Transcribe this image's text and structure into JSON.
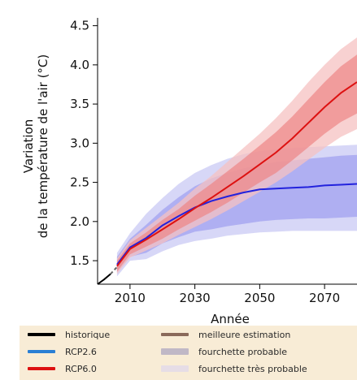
{
  "chart_data": {
    "type": "line",
    "xlabel": "Année",
    "ylabel": "Variation de la température de l'air (°C)",
    "xlim": [
      2000,
      2080
    ],
    "ylim": [
      1.2,
      4.6
    ],
    "x_ticks": [
      2010,
      2030,
      2050,
      2070
    ],
    "y_ticks": [
      1.5,
      2.0,
      2.5,
      3.0,
      3.5,
      4.0,
      4.5
    ],
    "grid": false,
    "series": [
      {
        "name": "historique",
        "color": "#000000",
        "style": "solid",
        "x": [
          2000,
          2002,
          2004
        ],
        "y": [
          1.2,
          1.26,
          1.33
        ]
      },
      {
        "name": "historique",
        "color": "#666666",
        "style": "dashed",
        "x": [
          2004,
          2006
        ],
        "y": [
          1.33,
          1.42
        ]
      },
      {
        "name": "RCP2.6",
        "color": "#2222dd",
        "x": [
          2006,
          2010,
          2015,
          2020,
          2025,
          2030,
          2035,
          2040,
          2045,
          2050,
          2055,
          2060,
          2065,
          2070,
          2075,
          2080
        ],
        "y": [
          1.45,
          1.67,
          1.79,
          1.95,
          2.07,
          2.18,
          2.26,
          2.32,
          2.37,
          2.41,
          2.42,
          2.43,
          2.44,
          2.46,
          2.47,
          2.48
        ],
        "likely_low": [
          1.35,
          1.55,
          1.6,
          1.72,
          1.8,
          1.87,
          1.9,
          1.94,
          1.97,
          2.0,
          2.02,
          2.03,
          2.04,
          2.04,
          2.05,
          2.06
        ],
        "likely_high": [
          1.55,
          1.78,
          1.96,
          2.15,
          2.31,
          2.45,
          2.55,
          2.62,
          2.68,
          2.72,
          2.76,
          2.78,
          2.8,
          2.82,
          2.84,
          2.85
        ],
        "very_likely_low": [
          1.3,
          1.5,
          1.52,
          1.62,
          1.7,
          1.75,
          1.78,
          1.82,
          1.84,
          1.86,
          1.87,
          1.88,
          1.88,
          1.88,
          1.88,
          1.88
        ],
        "very_likely_high": [
          1.6,
          1.85,
          2.1,
          2.3,
          2.48,
          2.62,
          2.72,
          2.8,
          2.86,
          2.9,
          2.92,
          2.94,
          2.95,
          2.96,
          2.97,
          2.98
        ]
      },
      {
        "name": "RCP6.0",
        "color": "#dd1111",
        "x": [
          2006,
          2010,
          2015,
          2020,
          2025,
          2030,
          2035,
          2040,
          2045,
          2050,
          2055,
          2060,
          2065,
          2070,
          2075,
          2080
        ],
        "y": [
          1.43,
          1.65,
          1.77,
          1.9,
          2.03,
          2.17,
          2.3,
          2.44,
          2.58,
          2.73,
          2.88,
          3.06,
          3.26,
          3.46,
          3.64,
          3.78
        ],
        "likely_low": [
          1.36,
          1.58,
          1.68,
          1.78,
          1.9,
          2.01,
          2.12,
          2.24,
          2.37,
          2.5,
          2.62,
          2.78,
          2.95,
          3.12,
          3.27,
          3.38
        ],
        "likely_high": [
          1.5,
          1.72,
          1.86,
          2.02,
          2.16,
          2.33,
          2.48,
          2.64,
          2.8,
          2.97,
          3.14,
          3.34,
          3.56,
          3.78,
          3.98,
          4.13
        ],
        "very_likely_low": [
          1.33,
          1.54,
          1.63,
          1.72,
          1.83,
          1.93,
          2.03,
          2.14,
          2.26,
          2.38,
          2.5,
          2.64,
          2.79,
          2.94,
          3.08,
          3.18
        ],
        "very_likely_high": [
          1.53,
          1.76,
          1.92,
          2.08,
          2.24,
          2.42,
          2.58,
          2.76,
          2.94,
          3.12,
          3.32,
          3.54,
          3.78,
          4.0,
          4.2,
          4.35
        ]
      }
    ]
  },
  "legend": [
    {
      "label": "historique",
      "color": "#000000",
      "kind": "line"
    },
    {
      "label": "RCP2.6",
      "color": "#2a7fd4",
      "kind": "line"
    },
    {
      "label": "RCP6.0",
      "color": "#dd1111",
      "kind": "line"
    },
    {
      "label": "meilleure estimation",
      "color": "#8a6a5a",
      "kind": "line"
    },
    {
      "label": "fourchette probable",
      "color": "#c0b8c6",
      "kind": "band"
    },
    {
      "label": "fourchette très probable",
      "color": "#e6dde6",
      "kind": "band"
    }
  ]
}
